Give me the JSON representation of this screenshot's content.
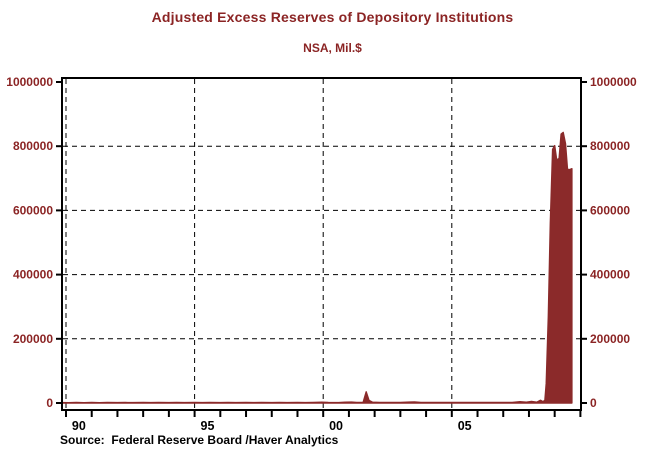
{
  "header": {
    "title": "Adjusted Excess Reserves of Depository Institutions",
    "subtitle": "NSA, Mil.$"
  },
  "footer": {
    "source": "Source:  Federal Reserve Board /Haver Analytics"
  },
  "colors": {
    "title_maroon": "#8B2424",
    "series_maroon": "#8B2A2A",
    "axis_black": "#000000",
    "background": "#ffffff"
  },
  "chart_data": {
    "type": "area",
    "title": "Adjusted Excess Reserves of Depository Institutions",
    "subtitle": "NSA, Mil.$",
    "xlabel": "",
    "ylabel": "",
    "xlim": [
      1989.84,
      2010.02
    ],
    "ylim": [
      0,
      1000000
    ],
    "grid": "dashed",
    "legend": "none",
    "y_ticks": [
      0,
      200000,
      400000,
      600000,
      800000,
      1000000
    ],
    "y_tick_labels": [
      "0",
      "200000",
      "400000",
      "600000",
      "800000",
      "1000000"
    ],
    "h_gridline_values": [
      200000,
      400000,
      600000,
      800000
    ],
    "v_gridline_years": [
      1990,
      1995,
      2000,
      2005
    ],
    "x_minor_tick_years": [
      1990,
      1991,
      1992,
      1993,
      1994,
      1995,
      1996,
      1997,
      1998,
      1999,
      2000,
      2001,
      2002,
      2003,
      2004,
      2005,
      2006,
      2007,
      2008,
      2009,
      2010
    ],
    "x_labels": [
      {
        "text": "90",
        "year": 1990.5
      },
      {
        "text": "95",
        "year": 1995.5
      },
      {
        "text": "00",
        "year": 2000.5
      },
      {
        "text": "05",
        "year": 2005.5
      }
    ],
    "series": [
      {
        "name": "Adjusted Excess Reserves of Depository Institutions (NSA, Mil.$)",
        "color": "#8B2A2A",
        "points": [
          [
            1989.85,
            1300
          ],
          [
            1990.1,
            900
          ],
          [
            1990.4,
            1600
          ],
          [
            1990.7,
            1000
          ],
          [
            1991.0,
            1500
          ],
          [
            1991.3,
            1000
          ],
          [
            1991.6,
            1600
          ],
          [
            1992.0,
            1200
          ],
          [
            1992.3,
            1700
          ],
          [
            1992.6,
            1100
          ],
          [
            1993.0,
            1500
          ],
          [
            1993.3,
            1100
          ],
          [
            1993.6,
            1600
          ],
          [
            1994.0,
            1200
          ],
          [
            1994.3,
            1600
          ],
          [
            1994.6,
            1100
          ],
          [
            1995.0,
            1500
          ],
          [
            1995.3,
            1200
          ],
          [
            1995.6,
            1700
          ],
          [
            1996.0,
            1300
          ],
          [
            1996.3,
            1600
          ],
          [
            1996.6,
            1200
          ],
          [
            1997.0,
            1600
          ],
          [
            1997.3,
            1300
          ],
          [
            1997.6,
            1500
          ],
          [
            1998.0,
            1300
          ],
          [
            1998.3,
            1700
          ],
          [
            1998.6,
            1400
          ],
          [
            1999.0,
            1600
          ],
          [
            1999.3,
            1400
          ],
          [
            1999.6,
            1500
          ],
          [
            1999.95,
            2600
          ],
          [
            2000.2,
            1500
          ],
          [
            2000.6,
            1400
          ],
          [
            2000.85,
            2600
          ],
          [
            2001.1,
            2800
          ],
          [
            2001.3,
            1600
          ],
          [
            2001.55,
            1800
          ],
          [
            2001.67,
            35000
          ],
          [
            2001.78,
            8000
          ],
          [
            2001.92,
            2500
          ],
          [
            2002.2,
            1600
          ],
          [
            2002.6,
            1700
          ],
          [
            2003.0,
            1800
          ],
          [
            2003.35,
            2900
          ],
          [
            2003.55,
            3100
          ],
          [
            2003.8,
            1900
          ],
          [
            2004.2,
            1700
          ],
          [
            2004.6,
            1800
          ],
          [
            2005.0,
            1700
          ],
          [
            2005.4,
            1800
          ],
          [
            2005.8,
            1700
          ],
          [
            2006.2,
            1800
          ],
          [
            2006.6,
            1700
          ],
          [
            2007.0,
            1600
          ],
          [
            2007.35,
            1800
          ],
          [
            2007.65,
            4200
          ],
          [
            2007.9,
            2600
          ],
          [
            2008.1,
            4800
          ],
          [
            2008.3,
            2600
          ],
          [
            2008.45,
            8500
          ],
          [
            2008.55,
            4000
          ],
          [
            2008.62,
            9000
          ],
          [
            2008.67,
            60000
          ],
          [
            2008.75,
            268000
          ],
          [
            2008.83,
            559000
          ],
          [
            2008.92,
            790000
          ],
          [
            2009.0,
            802000
          ],
          [
            2009.08,
            757000
          ],
          [
            2009.17,
            762000
          ],
          [
            2009.25,
            838000
          ],
          [
            2009.33,
            843000
          ],
          [
            2009.42,
            808000
          ],
          [
            2009.5,
            728000
          ],
          [
            2009.58,
            727000
          ],
          [
            2009.67,
            730000
          ]
        ]
      }
    ]
  }
}
